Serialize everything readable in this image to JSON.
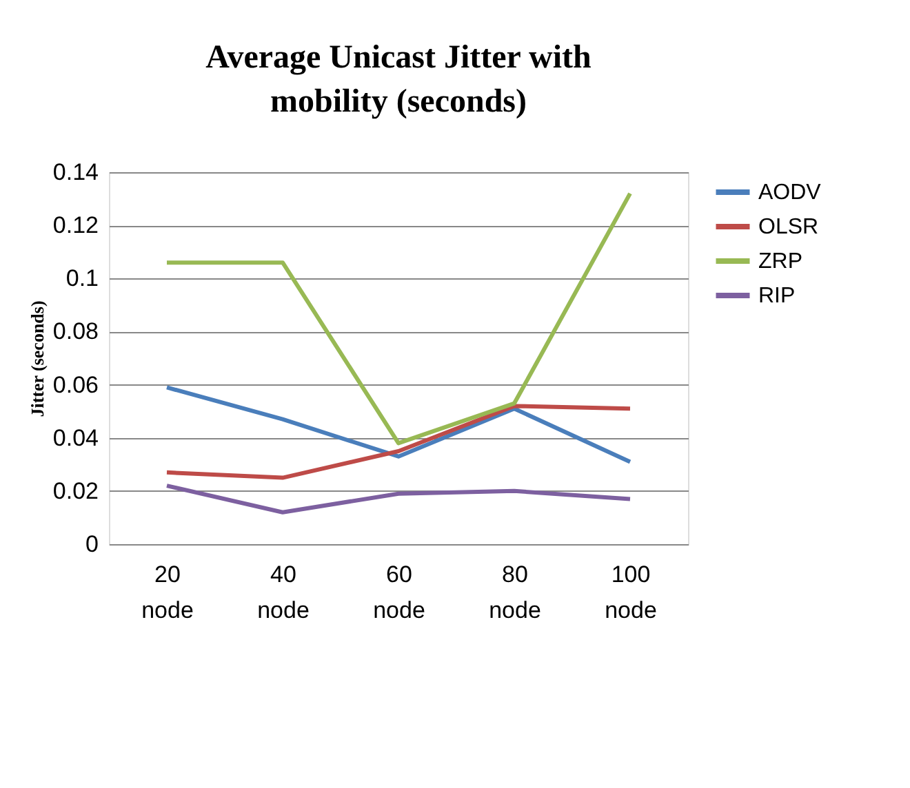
{
  "chart_data": {
    "type": "line",
    "title": "Average Unicast Jitter with mobility (seconds)",
    "ylabel": "Jitter (seconds)",
    "categories": [
      "20 node",
      "40 node",
      "60 node",
      "80 node",
      "100 node"
    ],
    "series": [
      {
        "name": "AODV",
        "color": "#4a7ebb",
        "values": [
          0.059,
          0.047,
          0.033,
          0.051,
          0.031
        ]
      },
      {
        "name": "OLSR",
        "color": "#be4b48",
        "values": [
          0.027,
          0.025,
          0.035,
          0.052,
          0.051
        ]
      },
      {
        "name": "ZRP",
        "color": "#98b954",
        "values": [
          0.106,
          0.106,
          0.038,
          0.053,
          0.132
        ]
      },
      {
        "name": "RIP",
        "color": "#7d60a0",
        "values": [
          0.022,
          0.012,
          0.019,
          0.02,
          0.017
        ]
      }
    ],
    "ylim": [
      0,
      0.14
    ],
    "yticks": [
      0,
      0.02,
      0.04,
      0.06,
      0.08,
      0.1,
      0.12,
      0.14
    ],
    "grid": "y",
    "legend": "right",
    "marker": "none",
    "line_style": "solid"
  }
}
